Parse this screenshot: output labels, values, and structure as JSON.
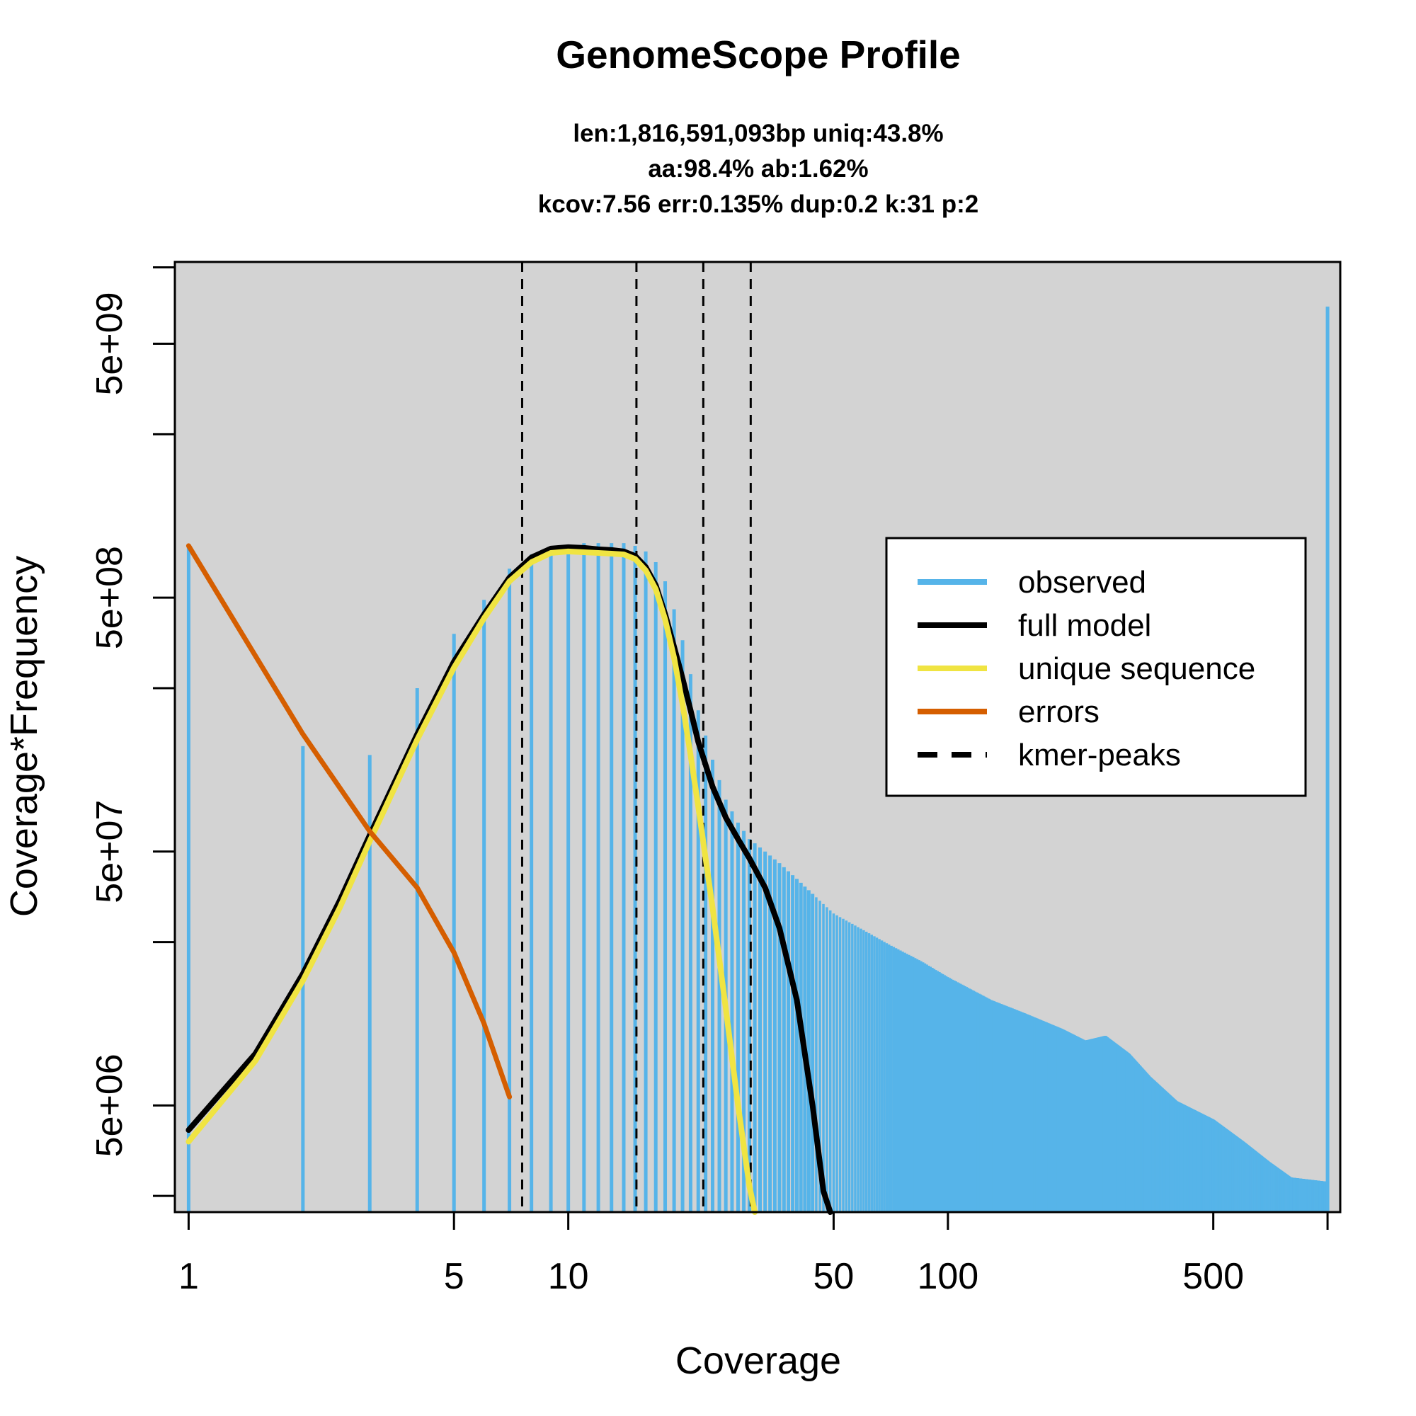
{
  "chart_data": {
    "type": "bar",
    "title": "GenomeScope Profile",
    "subtitle_lines": [
      "len:1,816,591,093bp uniq:43.8%",
      "aa:98.4% ab:1.62%",
      "kcov:7.56 err:0.135%  dup:0.2  k:31 p:2"
    ],
    "xlabel": "Coverage",
    "ylabel": "Coverage*Frequency",
    "x_scale": "log",
    "y_scale": "log",
    "xlim": [
      0.92,
      1080
    ],
    "ylim": [
      1900000.0,
      10500000000.0
    ],
    "x_ticks": [
      1,
      5,
      10,
      50,
      100,
      500,
      1000
    ],
    "x_tick_labels": [
      "1",
      "5",
      "10",
      "50",
      "100",
      "500",
      ""
    ],
    "y_ticks": [
      2200000.0,
      5000000.0,
      22000000.0,
      50000000.0,
      220000000.0,
      500000000.0,
      2200000000.0,
      5000000000.0,
      10000000000.0
    ],
    "y_tick_labels": [
      "",
      "5e+06",
      "",
      "5e+07",
      "",
      "5e+08",
      "",
      "5e+09",
      ""
    ],
    "colors": {
      "background": "#d3d3d3",
      "observed": "#56b4e9",
      "full_model": "#000000",
      "unique_sequence": "#f0e442",
      "errors": "#d55e00",
      "kmer_peaks": "#000000"
    },
    "legend": {
      "position": "right",
      "entries": [
        {
          "label": "observed",
          "color": "#56b4e9",
          "style": "solid"
        },
        {
          "label": "full model",
          "color": "#000000",
          "style": "solid"
        },
        {
          "label": "unique sequence",
          "color": "#f0e442",
          "style": "solid"
        },
        {
          "label": "errors",
          "color": "#d55e00",
          "style": "solid"
        },
        {
          "label": "kmer-peaks",
          "color": "#000000",
          "style": "dashed"
        }
      ]
    },
    "kmer_peaks": [
      7.56,
      15.12,
      22.68,
      30.24
    ],
    "observed_anchors": [
      [
        1,
        800000000.0
      ],
      [
        2,
        130000000.0
      ],
      [
        3,
        120000000.0
      ],
      [
        4,
        220000000.0
      ],
      [
        5,
        360000000.0
      ],
      [
        6,
        490000000.0
      ],
      [
        7,
        650000000.0
      ],
      [
        8,
        740000000.0
      ],
      [
        9,
        790000000.0
      ],
      [
        10,
        810000000.0
      ],
      [
        11,
        820000000.0
      ],
      [
        12,
        820000000.0
      ],
      [
        13,
        820000000.0
      ],
      [
        14,
        820000000.0
      ],
      [
        15,
        800000000.0
      ],
      [
        16,
        760000000.0
      ],
      [
        17,
        690000000.0
      ],
      [
        18,
        580000000.0
      ],
      [
        19,
        450000000.0
      ],
      [
        20,
        340000000.0
      ],
      [
        21,
        250000000.0
      ],
      [
        22,
        180000000.0
      ],
      [
        24,
        115000000.0
      ],
      [
        26,
        80000000.0
      ],
      [
        28,
        65000000.0
      ],
      [
        30,
        56000000.0
      ],
      [
        33,
        50000000.0
      ],
      [
        36,
        45000000.0
      ],
      [
        40,
        39000000.0
      ],
      [
        45,
        33000000.0
      ],
      [
        50,
        28500000.0
      ],
      [
        60,
        24500000.0
      ],
      [
        70,
        21500000.0
      ],
      [
        85,
        18500000.0
      ],
      [
        100,
        16000000.0
      ],
      [
        130,
        13000000.0
      ],
      [
        160,
        11500000.0
      ],
      [
        200,
        10000000.0
      ],
      [
        230,
        9000000.0
      ],
      [
        260,
        9400000.0
      ],
      [
        300,
        8000000.0
      ],
      [
        340,
        6500000.0
      ],
      [
        400,
        5200000.0
      ],
      [
        500,
        4400000.0
      ],
      [
        600,
        3600000.0
      ],
      [
        700,
        3000000.0
      ],
      [
        800,
        2600000.0
      ],
      [
        999,
        2500000.0
      ]
    ],
    "observed_final_bar": {
      "x": 1000,
      "y": 7000000000.0
    },
    "full_model": [
      [
        1,
        4000000.0
      ],
      [
        1.5,
        8000000.0
      ],
      [
        2,
        16500000.0
      ],
      [
        2.5,
        32000000.0
      ],
      [
        3,
        58000000.0
      ],
      [
        4,
        145000000.0
      ],
      [
        5,
        280000000.0
      ],
      [
        6,
        430000000.0
      ],
      [
        7,
        600000000.0
      ],
      [
        8,
        720000000.0
      ],
      [
        9,
        780000000.0
      ],
      [
        10,
        790000000.0
      ],
      [
        11,
        785000000.0
      ],
      [
        12,
        775000000.0
      ],
      [
        13,
        770000000.0
      ],
      [
        14,
        760000000.0
      ],
      [
        15,
        730000000.0
      ],
      [
        16,
        660000000.0
      ],
      [
        17,
        560000000.0
      ],
      [
        18,
        430000000.0
      ],
      [
        19,
        320000000.0
      ],
      [
        20,
        240000000.0
      ],
      [
        21,
        180000000.0
      ],
      [
        22,
        135000000.0
      ],
      [
        24,
        90000000.0
      ],
      [
        26,
        68000000.0
      ],
      [
        28,
        56000000.0
      ],
      [
        30,
        47000000.0
      ],
      [
        33,
        36000000.0
      ],
      [
        36,
        25000000.0
      ],
      [
        40,
        13000000.0
      ],
      [
        44,
        5000000.0
      ],
      [
        47,
        2300000.0
      ],
      [
        49,
        1900000.0
      ]
    ],
    "unique_sequence": [
      [
        1,
        3600000.0
      ],
      [
        1.5,
        7500000.0
      ],
      [
        2,
        15500000.0
      ],
      [
        2.5,
        30000000.0
      ],
      [
        3,
        55000000.0
      ],
      [
        4,
        138000000.0
      ],
      [
        5,
        265000000.0
      ],
      [
        6,
        415000000.0
      ],
      [
        7,
        580000000.0
      ],
      [
        8,
        690000000.0
      ],
      [
        9,
        750000000.0
      ],
      [
        10,
        760000000.0
      ],
      [
        11,
        755000000.0
      ],
      [
        12,
        750000000.0
      ],
      [
        13,
        745000000.0
      ],
      [
        14,
        740000000.0
      ],
      [
        15,
        710000000.0
      ],
      [
        16,
        640000000.0
      ],
      [
        17,
        540000000.0
      ],
      [
        18,
        410000000.0
      ],
      [
        19,
        290000000.0
      ],
      [
        20,
        190000000.0
      ],
      [
        21,
        120000000.0
      ],
      [
        22,
        75000000.0
      ],
      [
        24,
        30000000.0
      ],
      [
        26,
        12000000.0
      ],
      [
        28,
        5000000.0
      ],
      [
        30,
        2400000.0
      ],
      [
        31,
        1900000.0
      ]
    ],
    "errors": [
      [
        1,
        800000000.0
      ],
      [
        2,
        145000000.0
      ],
      [
        3,
        60000000.0
      ],
      [
        4,
        36000000.0
      ],
      [
        5,
        20000000.0
      ],
      [
        6,
        10500000.0
      ],
      [
        7,
        5400000.0
      ]
    ]
  }
}
